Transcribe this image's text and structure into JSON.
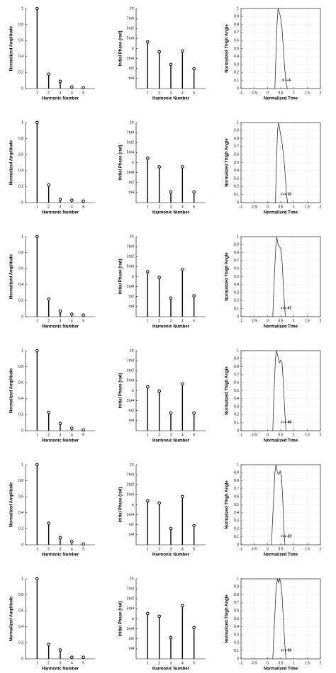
{
  "chart_data": [
    {
      "type": "stem",
      "xlabel": "Harmonic Number",
      "ylabel": "Normalized Amplitude",
      "x": [
        1,
        2,
        3,
        4,
        5
      ],
      "values": [
        1,
        0.18,
        0.09,
        0.02,
        0.01
      ],
      "xlim": [
        0,
        6
      ],
      "xticks": [
        1,
        2,
        3,
        4,
        5
      ],
      "ylim": [
        0,
        1
      ],
      "yticks": [
        0,
        0.2,
        0.4,
        0.6,
        0.8,
        1
      ],
      "color": "#000000",
      "grid": false
    },
    {
      "type": "stem",
      "xlabel": "Harmonic Number",
      "ylabel": "Initial Phase (rad)",
      "x": [
        1,
        2,
        3,
        4,
        5
      ],
      "values": [
        3.67,
        2.89,
        1.89,
        2.95,
        1.56
      ],
      "xlim": [
        0,
        6
      ],
      "xticks": [
        1,
        2,
        3,
        4,
        5
      ],
      "ylim": [
        0,
        6.2832
      ],
      "yticks": [
        {
          "value": 0.7854,
          "label": "π/4"
        },
        {
          "value": 1.5708,
          "label": "π/2"
        },
        {
          "value": 2.3562,
          "label": "3π/4"
        },
        {
          "value": 3.1416,
          "label": "π"
        },
        {
          "value": 3.927,
          "label": "5π/4"
        },
        {
          "value": 4.7124,
          "label": "3π/2"
        },
        {
          "value": 5.4978,
          "label": "7π/4"
        },
        {
          "value": 6.2832,
          "label": "2π"
        }
      ],
      "color": "#000000",
      "grid": false
    },
    {
      "type": "line",
      "xlabel": "Normalized Time",
      "ylabel": "Normalized Thigh Angle",
      "annotation": "n = 4",
      "x": [
        0.28,
        0.32,
        0.36,
        0.4,
        0.45,
        0.5,
        0.55,
        0.6,
        0.65,
        0.7,
        0.75
      ],
      "values": [
        0,
        0.4,
        0.8,
        1,
        0.95,
        0.88,
        0.75,
        0.5,
        0.25,
        0.08,
        0
      ],
      "xlim": [
        -1,
        2
      ],
      "xticks": [
        -1,
        -0.5,
        0,
        0.5,
        1,
        1.5,
        2
      ],
      "ylim": [
        0,
        1
      ],
      "yticks": [
        0,
        0.1,
        0.2,
        0.3,
        0.4,
        0.5,
        0.6,
        0.7,
        0.8,
        0.9,
        1
      ],
      "color": "#333333",
      "grid": true
    },
    {
      "type": "stem",
      "xlabel": "Harmonic Number",
      "ylabel": "Normalized Amplitude",
      "x": [
        1,
        2,
        3,
        4,
        5
      ],
      "values": [
        1,
        0.22,
        0.04,
        0.03,
        0.02
      ],
      "xlim": [
        0,
        6
      ],
      "xticks": [
        1,
        2,
        3,
        4,
        5
      ],
      "ylim": [
        0,
        1
      ],
      "yticks": [
        0,
        0.2,
        0.4,
        0.6,
        0.8,
        1
      ],
      "color": "#000000",
      "grid": false
    },
    {
      "type": "stem",
      "xlabel": "Harmonic Number",
      "ylabel": "Initial Phase (rad)",
      "x": [
        1,
        2,
        3,
        4,
        5
      ],
      "values": [
        3.48,
        2.81,
        0.84,
        2.81,
        0.84
      ],
      "xlim": [
        0,
        6
      ],
      "xticks": [
        1,
        2,
        3,
        4,
        5
      ],
      "ylim": [
        0,
        6.2832
      ],
      "yticks": [
        {
          "value": 0.7854,
          "label": "π/4"
        },
        {
          "value": 1.5708,
          "label": "π/2"
        },
        {
          "value": 2.3562,
          "label": "3π/4"
        },
        {
          "value": 3.1416,
          "label": "π"
        },
        {
          "value": 3.927,
          "label": "5π/4"
        },
        {
          "value": 4.7124,
          "label": "3π/2"
        },
        {
          "value": 5.4978,
          "label": "7π/4"
        },
        {
          "value": 6.2832,
          "label": "2π"
        }
      ],
      "color": "#000000",
      "grid": false
    },
    {
      "type": "line",
      "xlabel": "Normalized Time",
      "ylabel": "Normalized Thigh Angle",
      "annotation": "n = 10",
      "x": [
        0.3,
        0.34,
        0.38,
        0.42,
        0.47,
        0.55,
        0.62,
        0.68,
        0.72,
        0.76
      ],
      "values": [
        0,
        0.5,
        0.9,
        1,
        0.9,
        0.75,
        0.55,
        0.3,
        0.1,
        0
      ],
      "xlim": [
        -1,
        2
      ],
      "xticks": [
        -1,
        -0.5,
        0,
        0.5,
        1,
        1.5,
        2
      ],
      "ylim": [
        0,
        1
      ],
      "yticks": [
        0,
        0.1,
        0.2,
        0.3,
        0.4,
        0.5,
        0.6,
        0.7,
        0.8,
        0.9,
        1
      ],
      "color": "#333333",
      "grid": true
    },
    {
      "type": "stem",
      "xlabel": "Harmonic Number",
      "ylabel": "Normalized Amplitude",
      "x": [
        1,
        2,
        3,
        4,
        5
      ],
      "values": [
        1,
        0.22,
        0.07,
        0.03,
        0.02
      ],
      "xlim": [
        0,
        6
      ],
      "xticks": [
        1,
        2,
        3,
        4,
        5
      ],
      "ylim": [
        0,
        1
      ],
      "yticks": [
        0,
        0.2,
        0.4,
        0.6,
        0.8,
        1
      ],
      "color": "#000000",
      "grid": false
    },
    {
      "type": "stem",
      "xlabel": "Harmonic Number",
      "ylabel": "Initial Phase (rad)",
      "x": [
        1,
        2,
        3,
        4,
        5
      ],
      "values": [
        3.53,
        3.08,
        1.46,
        3.7,
        1.63
      ],
      "xlim": [
        0,
        6
      ],
      "xticks": [
        1,
        2,
        3,
        4,
        5
      ],
      "ylim": [
        0,
        6.2832
      ],
      "yticks": [
        {
          "value": 0.7854,
          "label": "π/4"
        },
        {
          "value": 1.5708,
          "label": "π/2"
        },
        {
          "value": 2.3562,
          "label": "3π/4"
        },
        {
          "value": 3.1416,
          "label": "π"
        },
        {
          "value": 3.927,
          "label": "5π/4"
        },
        {
          "value": 4.7124,
          "label": "3π/2"
        },
        {
          "value": 5.4978,
          "label": "7π/4"
        },
        {
          "value": 6.2832,
          "label": "2π"
        }
      ],
      "color": "#000000",
      "grid": false
    },
    {
      "type": "line",
      "xlabel": "Normalized Time",
      "ylabel": "Normalized Thigh Angle",
      "annotation": "n = 67",
      "x": [
        0.2,
        0.26,
        0.32,
        0.35,
        0.4,
        0.45,
        0.5,
        0.55,
        0.6,
        0.65,
        0.68
      ],
      "values": [
        0,
        0.5,
        0.9,
        1,
        0.9,
        0.88,
        0.85,
        0.7,
        0.4,
        0.1,
        0
      ],
      "xlim": [
        -1,
        2
      ],
      "xticks": [
        -1,
        -0.5,
        0,
        0.5,
        1,
        1.5,
        2
      ],
      "ylim": [
        0,
        1
      ],
      "yticks": [
        0,
        0.1,
        0.2,
        0.3,
        0.4,
        0.5,
        0.6,
        0.7,
        0.8,
        0.9,
        1
      ],
      "color": "#333333",
      "grid": true
    },
    {
      "type": "stem",
      "xlabel": "Harmonic Number",
      "ylabel": "Normalized Amplitude",
      "x": [
        1,
        2,
        3,
        4,
        5
      ],
      "values": [
        1,
        0.23,
        0.09,
        0.03,
        0.01
      ],
      "xlim": [
        0,
        6
      ],
      "xticks": [
        1,
        2,
        3,
        4,
        5
      ],
      "ylim": [
        0,
        1
      ],
      "yticks": [
        0,
        0.2,
        0.4,
        0.6,
        0.8,
        1
      ],
      "color": "#000000",
      "grid": false
    },
    {
      "type": "stem",
      "xlabel": "Harmonic Number",
      "ylabel": "Initial Phase (rad)",
      "x": [
        1,
        2,
        3,
        4,
        5
      ],
      "values": [
        3.45,
        3.11,
        1.39,
        3.67,
        1.39
      ],
      "xlim": [
        0,
        6
      ],
      "xticks": [
        1,
        2,
        3,
        4,
        5
      ],
      "ylim": [
        0,
        6.2832
      ],
      "yticks": [
        {
          "value": 0.7854,
          "label": "π/4"
        },
        {
          "value": 1.5708,
          "label": "π/2"
        },
        {
          "value": 2.3562,
          "label": "3π/4"
        },
        {
          "value": 3.1416,
          "label": "π"
        },
        {
          "value": 3.927,
          "label": "5π/4"
        },
        {
          "value": 4.7124,
          "label": "3π/2"
        },
        {
          "value": 5.4978,
          "label": "7π/4"
        },
        {
          "value": 6.2832,
          "label": "2π"
        }
      ],
      "color": "#000000",
      "grid": false
    },
    {
      "type": "line",
      "xlabel": "Normalized Time",
      "ylabel": "Normalized Thigh Angle",
      "annotation": "n = 46",
      "x": [
        0.2,
        0.25,
        0.3,
        0.34,
        0.4,
        0.45,
        0.5,
        0.55,
        0.6,
        0.65,
        0.7
      ],
      "values": [
        0,
        0.5,
        0.9,
        1,
        0.92,
        0.85,
        0.88,
        0.85,
        0.6,
        0.25,
        0
      ],
      "xlim": [
        -1,
        2
      ],
      "xticks": [
        -1,
        -0.5,
        0,
        0.5,
        1,
        1.5,
        2
      ],
      "ylim": [
        0,
        1
      ],
      "yticks": [
        0,
        0.1,
        0.2,
        0.3,
        0.4,
        0.5,
        0.6,
        0.7,
        0.8,
        0.9,
        1
      ],
      "color": "#333333",
      "grid": true
    },
    {
      "type": "stem",
      "xlabel": "Harmonic Number",
      "ylabel": "Normalized Amplitude",
      "x": [
        1,
        2,
        3,
        4,
        5
      ],
      "values": [
        1,
        0.27,
        0.09,
        0.04,
        0.01
      ],
      "xlim": [
        0,
        6
      ],
      "xticks": [
        1,
        2,
        3,
        4,
        5
      ],
      "ylim": [
        0,
        1
      ],
      "yticks": [
        0,
        0.2,
        0.4,
        0.6,
        0.8,
        1
      ],
      "color": "#000000",
      "grid": false
    },
    {
      "type": "stem",
      "xlabel": "Harmonic Number",
      "ylabel": "Initial Phase (rad)",
      "x": [
        1,
        2,
        3,
        4,
        5
      ],
      "values": [
        3.45,
        3.28,
        1.28,
        3.78,
        1.5
      ],
      "xlim": [
        0,
        6
      ],
      "xticks": [
        1,
        2,
        3,
        4,
        5
      ],
      "ylim": [
        0,
        6.2832
      ],
      "yticks": [
        {
          "value": 0.7854,
          "label": "π/4"
        },
        {
          "value": 1.5708,
          "label": "π/2"
        },
        {
          "value": 2.3562,
          "label": "3π/4"
        },
        {
          "value": 3.1416,
          "label": "π"
        },
        {
          "value": 3.927,
          "label": "5π/4"
        },
        {
          "value": 4.7124,
          "label": "3π/2"
        },
        {
          "value": 5.4978,
          "label": "7π/4"
        },
        {
          "value": 6.2832,
          "label": "2π"
        }
      ],
      "color": "#000000",
      "grid": false
    },
    {
      "type": "line",
      "xlabel": "Normalized Time",
      "ylabel": "Normalized Thigh Angle",
      "annotation": "n = 23",
      "x": [
        0.15,
        0.22,
        0.28,
        0.32,
        0.38,
        0.43,
        0.48,
        0.53,
        0.58,
        0.62,
        0.66
      ],
      "values": [
        0,
        0.5,
        0.9,
        1,
        0.9,
        0.88,
        0.92,
        0.85,
        0.55,
        0.2,
        0
      ],
      "xlim": [
        -1,
        2
      ],
      "xticks": [
        -1,
        -0.5,
        0,
        0.5,
        1,
        1.5,
        2
      ],
      "ylim": [
        0,
        1
      ],
      "yticks": [
        0,
        0.1,
        0.2,
        0.3,
        0.4,
        0.5,
        0.6,
        0.7,
        0.8,
        0.9,
        1
      ],
      "color": "#333333",
      "grid": true
    },
    {
      "type": "stem",
      "xlabel": "Harmonic Number",
      "ylabel": "Normalized Amplitude",
      "x": [
        1,
        2,
        3,
        4,
        5
      ],
      "values": [
        1,
        0.18,
        0.11,
        0.02,
        0.02
      ],
      "xlim": [
        0,
        6
      ],
      "xticks": [
        1,
        2,
        3,
        4,
        5
      ],
      "ylim": [
        0,
        1
      ],
      "yticks": [
        0,
        0.2,
        0.4,
        0.6,
        0.8,
        1
      ],
      "color": "#000000",
      "grid": false
    },
    {
      "type": "stem",
      "xlabel": "Harmonic Number",
      "ylabel": "Initial Phase (rad)",
      "x": [
        1,
        2,
        3,
        4,
        5
      ],
      "values": [
        3.56,
        3.34,
        1.67,
        4.17,
        2.45
      ],
      "xlim": [
        0,
        6
      ],
      "xticks": [
        1,
        2,
        3,
        4,
        5
      ],
      "ylim": [
        0,
        6.2832
      ],
      "yticks": [
        {
          "value": 0.7854,
          "label": "π/4"
        },
        {
          "value": 1.5708,
          "label": "π/2"
        },
        {
          "value": 2.3562,
          "label": "3π/4"
        },
        {
          "value": 3.1416,
          "label": "π"
        },
        {
          "value": 3.927,
          "label": "5π/4"
        },
        {
          "value": 4.7124,
          "label": "3π/2"
        },
        {
          "value": 5.4978,
          "label": "7π/4"
        },
        {
          "value": 6.2832,
          "label": "2π"
        }
      ],
      "color": "#000000",
      "grid": false
    },
    {
      "type": "line",
      "xlabel": "Normalized Time",
      "ylabel": "Normalized Thigh Angle",
      "annotation": "n = 36",
      "x": [
        0.2,
        0.27,
        0.33,
        0.38,
        0.42,
        0.46,
        0.5,
        0.55,
        0.6,
        0.65,
        0.7
      ],
      "values": [
        0,
        0.5,
        0.9,
        1,
        0.95,
        1,
        0.95,
        0.8,
        0.5,
        0.2,
        0
      ],
      "xlim": [
        -1,
        2
      ],
      "xticks": [
        -1,
        -0.5,
        0,
        0.5,
        1,
        1.5,
        2
      ],
      "ylim": [
        0,
        1
      ],
      "yticks": [
        0,
        0.1,
        0.2,
        0.3,
        0.4,
        0.5,
        0.6,
        0.7,
        0.8,
        0.9,
        1
      ],
      "color": "#333333",
      "grid": true
    }
  ]
}
